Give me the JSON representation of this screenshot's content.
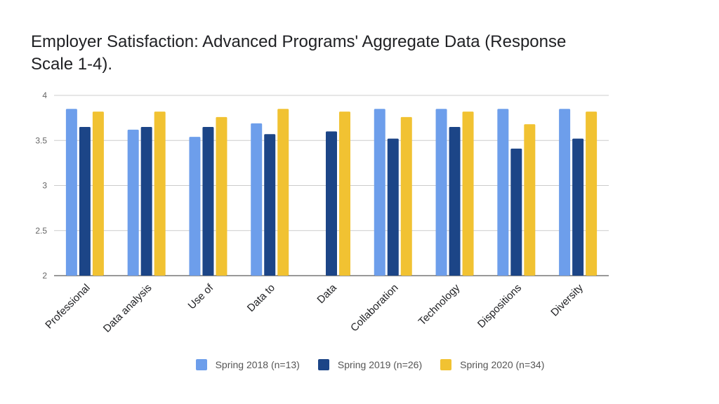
{
  "chart_data": {
    "type": "bar",
    "title": "Employer Satisfaction: Advanced Programs' Aggregate Data (Response Scale 1-4).",
    "xlabel": "",
    "ylabel": "",
    "ylim": [
      2,
      4
    ],
    "yticks": [
      2,
      2.5,
      3,
      3.5,
      4
    ],
    "ytick_labels": [
      "2",
      "2.5",
      "3",
      "3.5",
      "4"
    ],
    "grid": true,
    "legend_position": "bottom",
    "categories": [
      "Professional",
      "Data analysis",
      "Use of",
      "Data to",
      "Data",
      "Collaboration",
      "Technology",
      "Dispositions",
      "Diversity"
    ],
    "series": [
      {
        "name": "Spring 2018 (n=13)",
        "color": "#6d9eeb",
        "values": [
          3.85,
          3.62,
          3.54,
          3.69,
          null,
          3.85,
          3.85,
          3.85,
          3.85
        ]
      },
      {
        "name": "Spring 2019 (n=26)",
        "color": "#1c4587",
        "values": [
          3.65,
          3.65,
          3.65,
          3.57,
          3.6,
          3.52,
          3.65,
          3.41,
          3.52
        ]
      },
      {
        "name": "Spring 2020 (n=34)",
        "color": "#f1c232",
        "values": [
          3.82,
          3.82,
          3.76,
          3.85,
          3.82,
          3.76,
          3.82,
          3.68,
          3.82
        ]
      }
    ]
  },
  "colors": {
    "grid": "#cccccc",
    "axis_text": "#666666",
    "title_text": "#202124"
  }
}
